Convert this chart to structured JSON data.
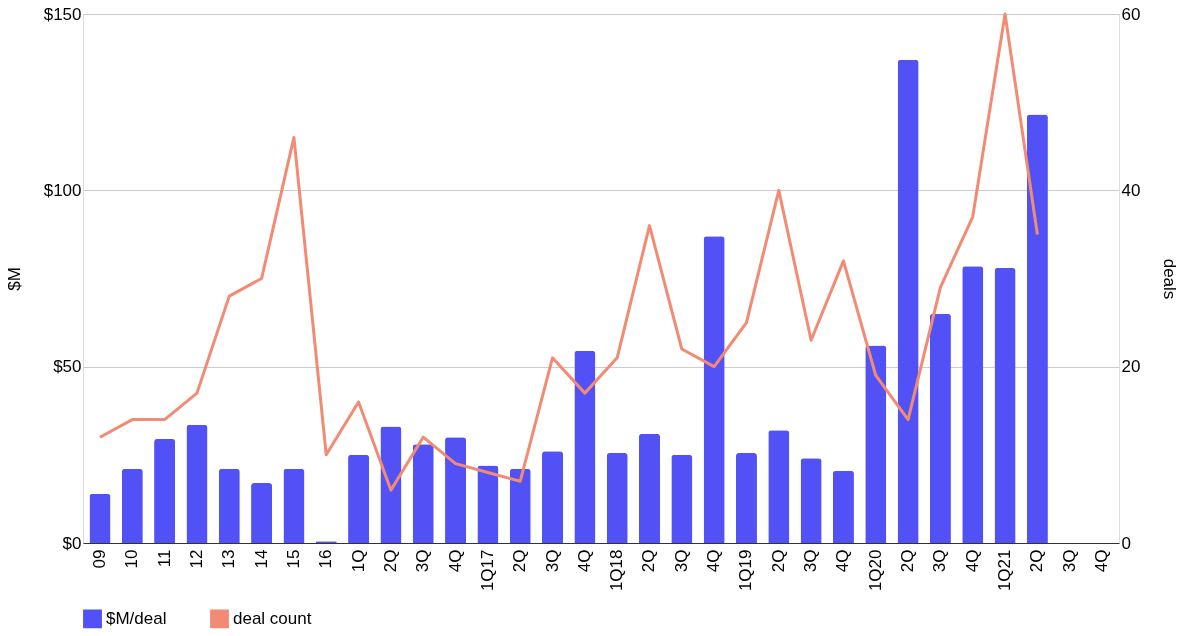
{
  "chart_data": {
    "type": "bar",
    "ylabel": "$M",
    "y2label": "deals",
    "categories": [
      "09",
      "10",
      "11",
      "12",
      "13",
      "14",
      "15",
      "16",
      "1Q",
      "2Q",
      "3Q",
      "4Q",
      "1Q17",
      "2Q",
      "3Q",
      "4Q",
      "1Q18",
      "2Q",
      "3Q",
      "4Q",
      "1Q19",
      "2Q",
      "3Q",
      "4Q",
      "1Q20",
      "2Q",
      "3Q",
      "4Q",
      "1Q21",
      "2Q",
      "3Q",
      "4Q"
    ],
    "series": [
      {
        "name": "$M/deal",
        "color": "#5151f6",
        "values": [
          14,
          21,
          29.5,
          33.5,
          21,
          17,
          21,
          0.5,
          25,
          33,
          28,
          30,
          22,
          21,
          26,
          54.5,
          25.5,
          31,
          25,
          87,
          25.5,
          32,
          24,
          20.5,
          56,
          137,
          65,
          78.5,
          78,
          121.5,
          null,
          null
        ]
      },
      {
        "name": "deal count",
        "type": "line",
        "axis": "y2",
        "color": "#f28b74",
        "values": [
          12,
          14,
          14,
          17,
          28,
          30,
          46,
          10,
          16,
          6,
          12,
          9,
          8,
          7,
          21,
          17,
          21,
          36,
          22,
          20,
          25,
          40,
          23,
          32,
          19,
          14,
          29,
          37,
          60,
          35,
          null,
          null
        ]
      }
    ],
    "ylim": [
      0,
      150
    ],
    "yticks": [
      {
        "value": 0,
        "label": "$0"
      },
      {
        "value": 50,
        "label": "$50"
      },
      {
        "value": 100,
        "label": "$100"
      },
      {
        "value": 150,
        "label": "$150"
      }
    ],
    "y2lim": [
      0,
      60
    ],
    "y2ticks": [
      0,
      20,
      40,
      60
    ],
    "grid": "y",
    "legend": "bottom"
  }
}
